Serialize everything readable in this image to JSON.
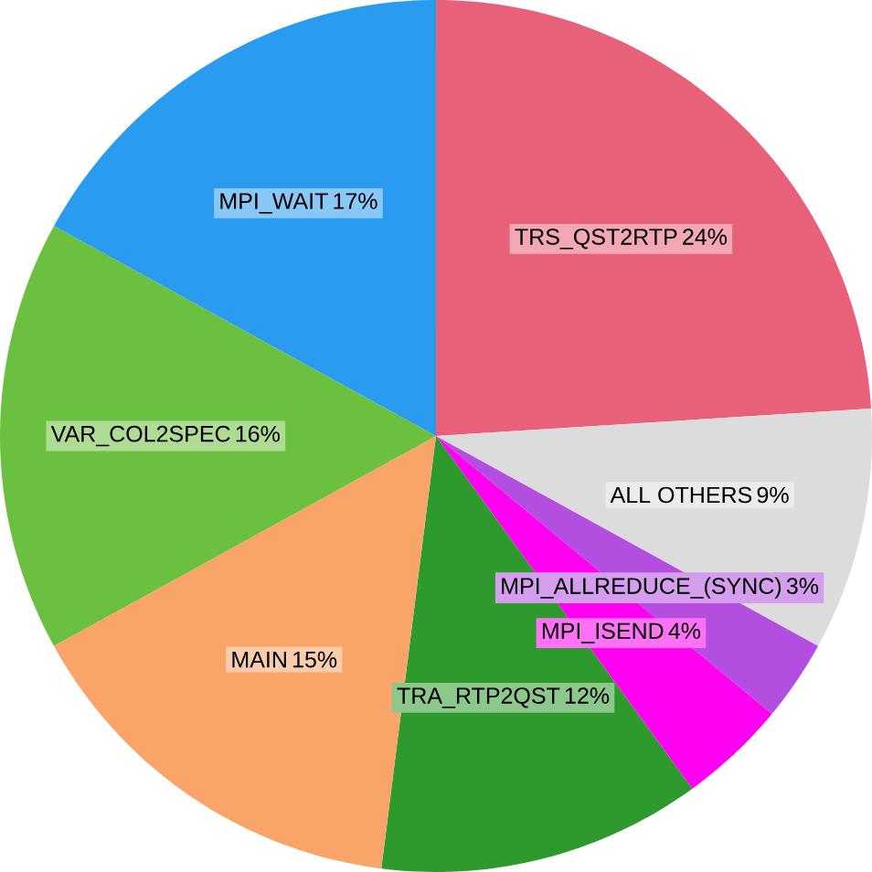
{
  "chart_data": {
    "type": "pie",
    "categories": [
      "TRS_QST2RTP",
      "ALL OTHERS",
      "MPI_ALLREDUCE_(SYNC)",
      "MPI_ISEND",
      "TRA_RTP2QST",
      "MAIN",
      "VAR_COL2SPEC",
      "MPI_WAIT"
    ],
    "values": [
      24,
      9,
      3,
      4,
      12,
      15,
      16,
      17
    ],
    "value_labels": [
      "24%",
      "9%",
      "3%",
      "4%",
      "12%",
      "15%",
      "16%",
      "17%"
    ],
    "colors": [
      "#e8607a",
      "#dcdcdc",
      "#b44ee0",
      "#ff00f0",
      "#2e9a2e",
      "#f9a468",
      "#6cc040",
      "#2a9cf0"
    ]
  }
}
